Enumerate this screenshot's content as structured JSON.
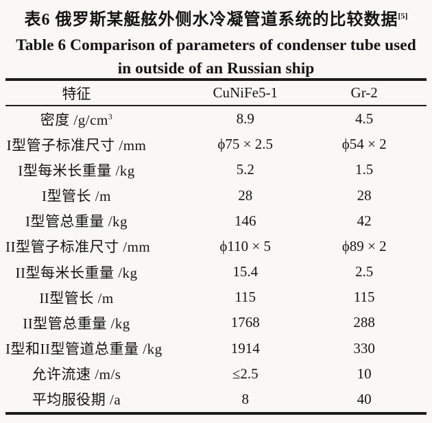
{
  "title": {
    "chinese": "表6  俄罗斯某艇舷外侧水冷凝管道系统的比较数据",
    "chinese_ref": "[5]",
    "english_line1": "Table 6  Comparison of parameters of condenser tube used",
    "english_line2": "in outside of an Russian ship"
  },
  "table": {
    "headers": [
      "特征",
      "CuNiFe5-1",
      "Gr-2"
    ],
    "rows": [
      {
        "label": "密度 /g/cm",
        "label_sup": "3",
        "cunife": "8.9",
        "gr2": "4.5"
      },
      {
        "label": "I型管子标准尺寸 /mm",
        "cunife": "ϕ75 × 2.5",
        "gr2": "ϕ54 × 2"
      },
      {
        "label": "I型每米长重量 /kg",
        "cunife": "5.2",
        "gr2": "1.5"
      },
      {
        "label": "I型管长 /m",
        "cunife": "28",
        "gr2": "28"
      },
      {
        "label": "I型管总重量 /kg",
        "cunife": "146",
        "gr2": "42"
      },
      {
        "label": "II型管子标准尺寸 /mm",
        "cunife": "ϕ110 × 5",
        "gr2": "ϕ89 × 2"
      },
      {
        "label": "II型每米长重量 /kg",
        "cunife": "15.4",
        "gr2": "2.5"
      },
      {
        "label": "II型管长 /m",
        "cunife": "115",
        "gr2": "115"
      },
      {
        "label": "II型管总重量 /kg",
        "cunife": "1768",
        "gr2": "288"
      },
      {
        "label": "I型和II型管道总重量 /kg",
        "cunife": "1914",
        "gr2": "330"
      },
      {
        "label": "允许流速 /m/s",
        "cunife": "≤2.5",
        "gr2": "10"
      },
      {
        "label": "平均服役期 /a",
        "cunife": "8",
        "gr2": "40"
      }
    ]
  },
  "chart_data": {
    "type": "table",
    "title": "Table 6 Comparison of parameters of condenser tube used in outside of an Russian ship",
    "columns": [
      "特征",
      "CuNiFe5-1",
      "Gr-2"
    ],
    "rows": [
      [
        "密度 /g/cm³",
        "8.9",
        "4.5"
      ],
      [
        "I型管子标准尺寸 /mm",
        "ϕ75 × 2.5",
        "ϕ54 × 2"
      ],
      [
        "I型每米长重量 /kg",
        "5.2",
        "1.5"
      ],
      [
        "I型管长 /m",
        "28",
        "28"
      ],
      [
        "I型管总重量 /kg",
        "146",
        "42"
      ],
      [
        "II型管子标准尺寸 /mm",
        "ϕ110 × 5",
        "ϕ89 × 2"
      ],
      [
        "II型每米长重量 /kg",
        "15.4",
        "2.5"
      ],
      [
        "II型管长 /m",
        "115",
        "115"
      ],
      [
        "II型管总重量 /kg",
        "1768",
        "288"
      ],
      [
        "I型和II型管道总重量 /kg",
        "1914",
        "330"
      ],
      [
        "允许流速 /m/s",
        "≤2.5",
        "10"
      ],
      [
        "平均服役期 /a",
        "8",
        "40"
      ]
    ]
  }
}
